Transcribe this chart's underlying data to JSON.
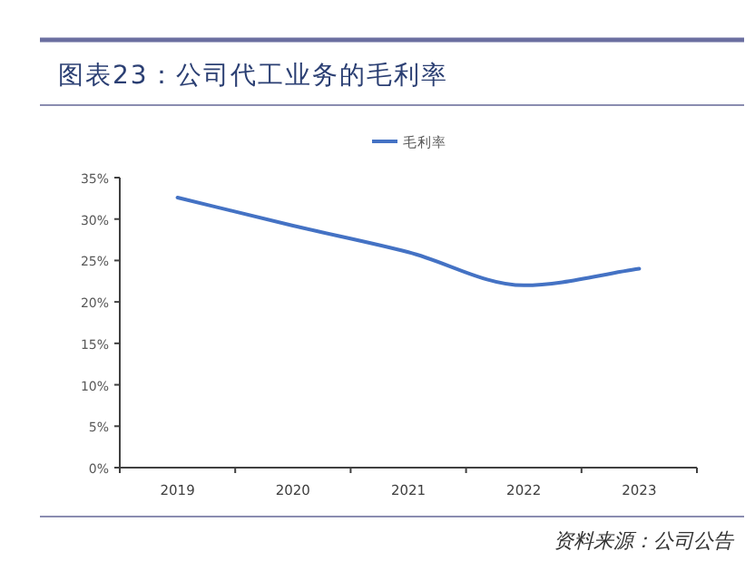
{
  "chart_data": {
    "type": "line",
    "title": "图表23：公司代工业务的毛利率",
    "categories": [
      "2019",
      "2020",
      "2021",
      "2022",
      "2023"
    ],
    "series": [
      {
        "name": "毛利率",
        "color": "#4472c4",
        "values": [
          32.6,
          29.2,
          26.0,
          22.0,
          24.0
        ]
      }
    ],
    "ylim": [
      0,
      35
    ],
    "yticks": [
      {
        "value": 0,
        "label": "0%"
      },
      {
        "value": 5,
        "label": "5%"
      },
      {
        "value": 10,
        "label": "10%"
      },
      {
        "value": 15,
        "label": "15%"
      },
      {
        "value": 20,
        "label": "20%"
      },
      {
        "value": 25,
        "label": "25%"
      },
      {
        "value": 30,
        "label": "30%"
      },
      {
        "value": 35,
        "label": "35%"
      }
    ],
    "legend": "top",
    "annotations": [
      "资料来源：公司公告"
    ]
  }
}
